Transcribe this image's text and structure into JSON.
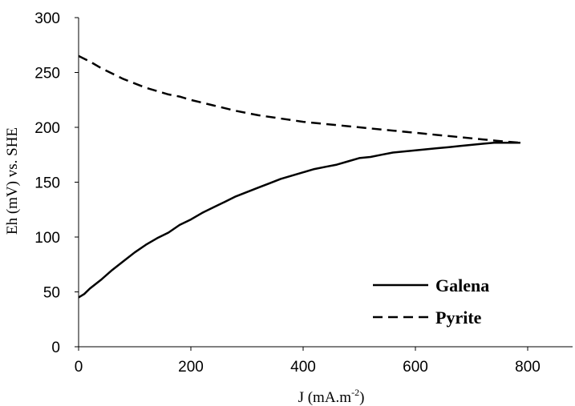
{
  "chart_data": {
    "type": "line",
    "xlabel": "J (mA.m",
    "xlabel_sup": "-2",
    "xlabel_suffix": ")",
    "ylabel": "Eh (mV) vs. SHE",
    "xlim": [
      0,
      880
    ],
    "ylim": [
      0,
      300
    ],
    "xticks": [
      0,
      200,
      400,
      600,
      800
    ],
    "yticks": [
      0,
      50,
      100,
      150,
      200,
      250,
      300
    ],
    "xtick_labels": [
      "0",
      "200",
      "400",
      "600",
      "800"
    ],
    "ytick_labels": [
      "0",
      "50",
      "100",
      "150",
      "200",
      "250",
      "300"
    ],
    "grid": false,
    "legend_position": "bottom-right",
    "series": [
      {
        "name": "Galena",
        "style": "solid",
        "color": "#000000",
        "x": [
          0,
          10,
          20,
          40,
          60,
          80,
          100,
          120,
          140,
          160,
          180,
          200,
          220,
          240,
          260,
          280,
          300,
          320,
          340,
          360,
          380,
          400,
          420,
          440,
          460,
          480,
          500,
          520,
          540,
          560,
          580,
          600,
          620,
          640,
          660,
          680,
          700,
          720,
          740,
          760,
          787
        ],
        "y": [
          45,
          48,
          53,
          61,
          70,
          78,
          86,
          93,
          99,
          104,
          111,
          116,
          122,
          127,
          132,
          137,
          141,
          145,
          149,
          153,
          156,
          159,
          162,
          164,
          166,
          169,
          172,
          173,
          175,
          177,
          178,
          179,
          180,
          181,
          182,
          183,
          184,
          185,
          186,
          186,
          186
        ]
      },
      {
        "name": "Pyrite",
        "style": "dashed",
        "color": "#000000",
        "x": [
          0,
          20,
          40,
          60,
          80,
          100,
          120,
          140,
          160,
          180,
          200,
          240,
          280,
          320,
          360,
          400,
          440,
          480,
          520,
          560,
          600,
          640,
          680,
          720,
          760,
          787
        ],
        "y": [
          265,
          260,
          254,
          249,
          244,
          240,
          236,
          233,
          230,
          228,
          225,
          220,
          215,
          211,
          208,
          205,
          203,
          201,
          199,
          197,
          195,
          193,
          191,
          189,
          187,
          186
        ]
      }
    ]
  }
}
